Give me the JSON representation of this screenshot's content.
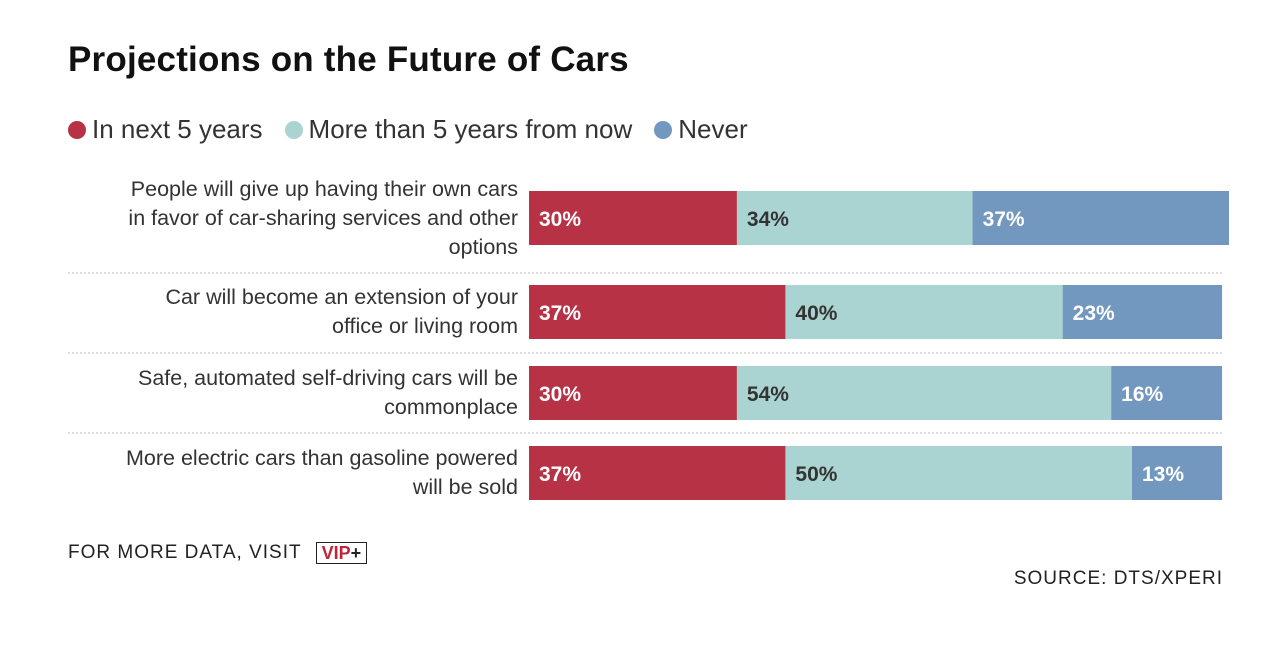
{
  "title": "Projections on the Future of Cars",
  "colors": {
    "in_next_5": "#b83246",
    "more_than_5": "#aad4d2",
    "never": "#7298bf"
  },
  "chart_data": {
    "type": "bar",
    "orientation": "horizontal",
    "stacked": true,
    "title": "Projections on the Future of Cars",
    "categories": [
      "People will give up having their own cars in favor of car-sharing services and other options",
      "Car will become an extension of your office or living room",
      "Safe, automated self-driving cars will be commonplace",
      "More electric cars than gasoline powered will be sold"
    ],
    "category_lines": [
      [
        "People will give up having their own cars",
        "in favor of car-sharing services and other",
        "options"
      ],
      [
        "Car will become an extension of your",
        "office or living room"
      ],
      [
        "Safe, automated self-driving cars will be",
        "commonplace"
      ],
      [
        "More electric cars than gasoline powered",
        "will be sold"
      ]
    ],
    "series": [
      {
        "name": "In next 5 years",
        "values": [
          30,
          37,
          30,
          37
        ],
        "labels": [
          "30%",
          "37%",
          "30%",
          "37%"
        ]
      },
      {
        "name": "More than 5 years from now",
        "values": [
          34,
          40,
          54,
          50
        ],
        "labels": [
          "34%",
          "40%",
          "54%",
          "50%"
        ]
      },
      {
        "name": "Never",
        "values": [
          37,
          23,
          16,
          13
        ],
        "labels": [
          "37%",
          "23%",
          "16%",
          "13%"
        ]
      }
    ],
    "xlim": [
      0,
      101
    ],
    "legend_position": "top-left",
    "grid": false
  },
  "footer": {
    "visit_text": "FOR MORE DATA, VISIT",
    "badge_vip": "VIP",
    "badge_plus": "+",
    "source": "SOURCE: DTS/XPERI"
  }
}
